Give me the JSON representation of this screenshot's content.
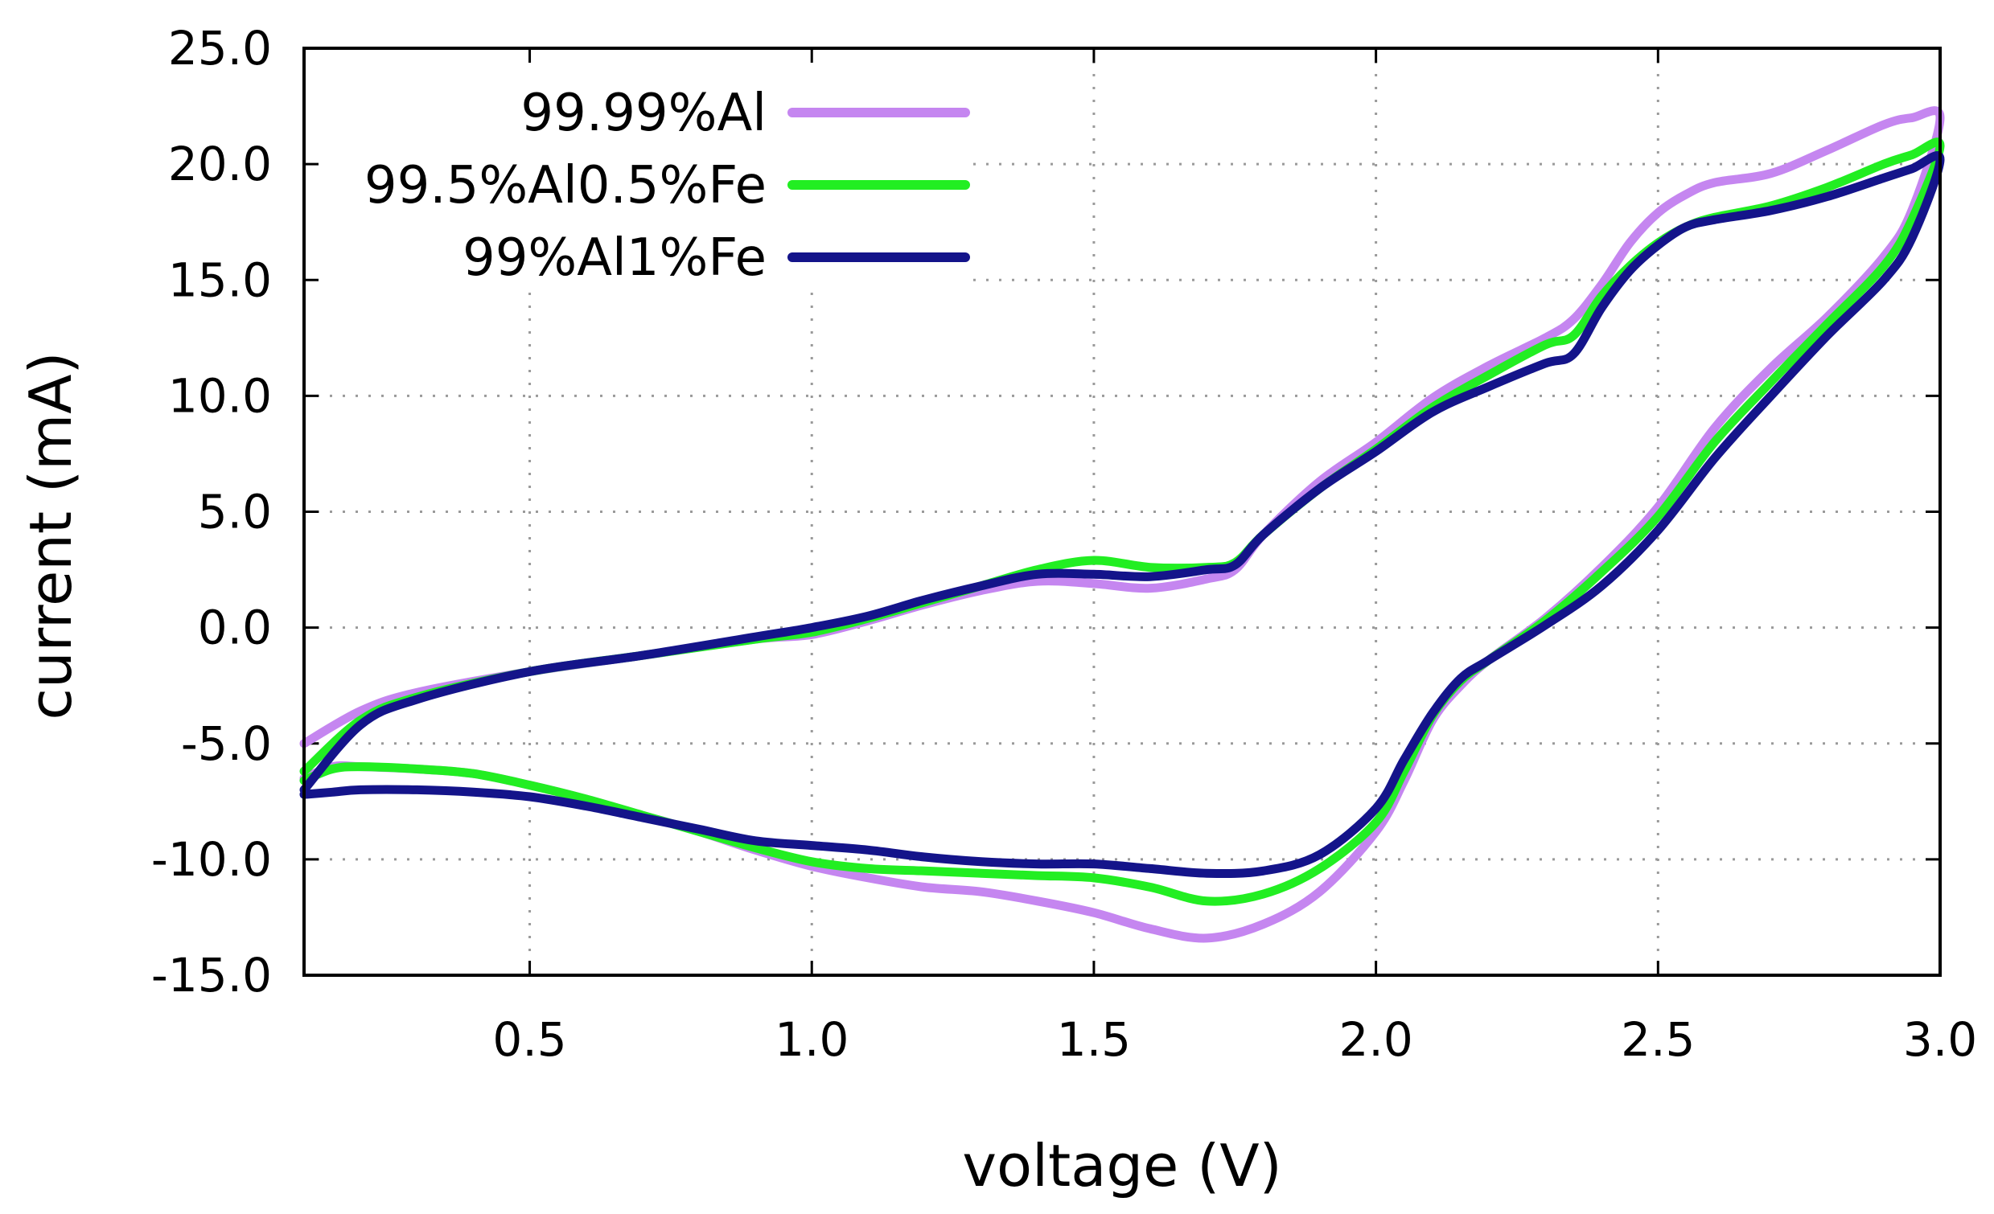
{
  "chart_data": {
    "type": "line",
    "title": "",
    "xlabel": "voltage (V)",
    "ylabel": "current (mA)",
    "xlim": [
      0.1,
      3.0
    ],
    "ylim": [
      -15.0,
      25.0
    ],
    "xticks": [
      0.5,
      1.0,
      1.5,
      2.0,
      2.5,
      3.0
    ],
    "xtick_labels": [
      "0.5",
      "1.0",
      "1.5",
      "2.0",
      "2.5",
      "3.0"
    ],
    "yticks": [
      -15.0,
      -10.0,
      -5.0,
      0.0,
      5.0,
      10.0,
      15.0,
      20.0,
      25.0
    ],
    "ytick_labels": [
      "-15.0",
      "-10.0",
      "-5.0",
      "0.0",
      "5.0",
      "10.0",
      "15.0",
      "20.0",
      "25.0"
    ],
    "grid": true,
    "legend_position": "top-left",
    "series": [
      {
        "name": "99.99%Al",
        "color": "#c586f0",
        "points": [
          [
            0.1,
            -5.0
          ],
          [
            0.2,
            -3.6
          ],
          [
            0.3,
            -2.8
          ],
          [
            0.5,
            -1.9
          ],
          [
            0.7,
            -1.2
          ],
          [
            0.9,
            -0.5
          ],
          [
            1.0,
            -0.3
          ],
          [
            1.1,
            0.3
          ],
          [
            1.2,
            1.0
          ],
          [
            1.3,
            1.6
          ],
          [
            1.4,
            2.0
          ],
          [
            1.5,
            1.9
          ],
          [
            1.6,
            1.7
          ],
          [
            1.7,
            2.1
          ],
          [
            1.75,
            2.5
          ],
          [
            1.8,
            4.0
          ],
          [
            1.9,
            6.3
          ],
          [
            2.0,
            8.0
          ],
          [
            2.1,
            9.9
          ],
          [
            2.2,
            11.3
          ],
          [
            2.3,
            12.5
          ],
          [
            2.35,
            13.3
          ],
          [
            2.4,
            14.8
          ],
          [
            2.45,
            16.6
          ],
          [
            2.5,
            17.9
          ],
          [
            2.55,
            18.7
          ],
          [
            2.6,
            19.2
          ],
          [
            2.7,
            19.6
          ],
          [
            2.8,
            20.6
          ],
          [
            2.9,
            21.7
          ],
          [
            2.95,
            22.0
          ],
          [
            3.0,
            22.0
          ],
          [
            2.95,
            18.0
          ],
          [
            2.9,
            16.0
          ],
          [
            2.8,
            13.4
          ],
          [
            2.7,
            11.2
          ],
          [
            2.6,
            8.6
          ],
          [
            2.5,
            5.2
          ],
          [
            2.4,
            2.6
          ],
          [
            2.3,
            0.4
          ],
          [
            2.2,
            -1.4
          ],
          [
            2.15,
            -2.5
          ],
          [
            2.1,
            -4.0
          ],
          [
            2.05,
            -6.6
          ],
          [
            2.0,
            -8.8
          ],
          [
            1.9,
            -11.4
          ],
          [
            1.8,
            -12.8
          ],
          [
            1.7,
            -13.4
          ],
          [
            1.6,
            -13.0
          ],
          [
            1.5,
            -12.3
          ],
          [
            1.4,
            -11.8
          ],
          [
            1.3,
            -11.4
          ],
          [
            1.2,
            -11.2
          ],
          [
            1.1,
            -10.8
          ],
          [
            1.0,
            -10.3
          ],
          [
            0.9,
            -9.6
          ],
          [
            0.8,
            -8.8
          ],
          [
            0.7,
            -8.1
          ],
          [
            0.6,
            -7.4
          ],
          [
            0.5,
            -6.8
          ],
          [
            0.4,
            -6.3
          ],
          [
            0.3,
            -6.1
          ],
          [
            0.2,
            -6.0
          ],
          [
            0.15,
            -6.0
          ],
          [
            0.1,
            -6.5
          ]
        ]
      },
      {
        "name": "99.5%Al0.5%Fe",
        "color": "#22ee22",
        "points": [
          [
            0.1,
            -6.2
          ],
          [
            0.2,
            -4.0
          ],
          [
            0.3,
            -3.0
          ],
          [
            0.5,
            -1.9
          ],
          [
            0.7,
            -1.2
          ],
          [
            0.9,
            -0.5
          ],
          [
            1.0,
            -0.2
          ],
          [
            1.1,
            0.4
          ],
          [
            1.2,
            1.1
          ],
          [
            1.3,
            1.8
          ],
          [
            1.4,
            2.5
          ],
          [
            1.5,
            2.9
          ],
          [
            1.6,
            2.6
          ],
          [
            1.7,
            2.6
          ],
          [
            1.75,
            2.8
          ],
          [
            1.8,
            4.0
          ],
          [
            1.9,
            6.0
          ],
          [
            2.0,
            7.7
          ],
          [
            2.1,
            9.5
          ],
          [
            2.2,
            10.9
          ],
          [
            2.3,
            12.2
          ],
          [
            2.35,
            12.6
          ],
          [
            2.4,
            14.3
          ],
          [
            2.45,
            15.6
          ],
          [
            2.5,
            16.6
          ],
          [
            2.55,
            17.3
          ],
          [
            2.6,
            17.7
          ],
          [
            2.7,
            18.2
          ],
          [
            2.8,
            19.0
          ],
          [
            2.9,
            20.0
          ],
          [
            2.95,
            20.4
          ],
          [
            3.0,
            20.8
          ],
          [
            2.95,
            17.6
          ],
          [
            2.9,
            15.6
          ],
          [
            2.8,
            13.1
          ],
          [
            2.7,
            10.6
          ],
          [
            2.6,
            8.0
          ],
          [
            2.5,
            4.8
          ],
          [
            2.4,
            2.4
          ],
          [
            2.3,
            0.3
          ],
          [
            2.2,
            -1.4
          ],
          [
            2.15,
            -2.3
          ],
          [
            2.1,
            -3.8
          ],
          [
            2.05,
            -6.2
          ],
          [
            2.0,
            -8.4
          ],
          [
            1.9,
            -10.4
          ],
          [
            1.8,
            -11.5
          ],
          [
            1.7,
            -11.8
          ],
          [
            1.6,
            -11.2
          ],
          [
            1.5,
            -10.8
          ],
          [
            1.4,
            -10.7
          ],
          [
            1.3,
            -10.6
          ],
          [
            1.2,
            -10.5
          ],
          [
            1.1,
            -10.4
          ],
          [
            1.0,
            -10.1
          ],
          [
            0.9,
            -9.5
          ],
          [
            0.8,
            -8.8
          ],
          [
            0.7,
            -8.1
          ],
          [
            0.6,
            -7.4
          ],
          [
            0.5,
            -6.8
          ],
          [
            0.4,
            -6.3
          ],
          [
            0.3,
            -6.1
          ],
          [
            0.2,
            -6.0
          ],
          [
            0.15,
            -6.1
          ],
          [
            0.1,
            -6.6
          ]
        ]
      },
      {
        "name": "99%Al1%Fe",
        "color": "#14148a",
        "points": [
          [
            0.1,
            -7.0
          ],
          [
            0.2,
            -4.2
          ],
          [
            0.3,
            -3.1
          ],
          [
            0.5,
            -1.9
          ],
          [
            0.7,
            -1.2
          ],
          [
            0.9,
            -0.4
          ],
          [
            1.0,
            0.0
          ],
          [
            1.1,
            0.5
          ],
          [
            1.2,
            1.2
          ],
          [
            1.3,
            1.8
          ],
          [
            1.4,
            2.3
          ],
          [
            1.5,
            2.3
          ],
          [
            1.6,
            2.2
          ],
          [
            1.7,
            2.5
          ],
          [
            1.75,
            2.7
          ],
          [
            1.8,
            4.0
          ],
          [
            1.9,
            6.0
          ],
          [
            2.0,
            7.6
          ],
          [
            2.1,
            9.3
          ],
          [
            2.2,
            10.4
          ],
          [
            2.3,
            11.4
          ],
          [
            2.35,
            11.8
          ],
          [
            2.4,
            13.8
          ],
          [
            2.45,
            15.4
          ],
          [
            2.5,
            16.5
          ],
          [
            2.55,
            17.3
          ],
          [
            2.6,
            17.6
          ],
          [
            2.7,
            18.0
          ],
          [
            2.8,
            18.6
          ],
          [
            2.9,
            19.4
          ],
          [
            2.95,
            19.8
          ],
          [
            3.0,
            20.2
          ],
          [
            2.95,
            16.8
          ],
          [
            2.9,
            15.0
          ],
          [
            2.8,
            12.6
          ],
          [
            2.7,
            10.0
          ],
          [
            2.6,
            7.3
          ],
          [
            2.5,
            4.2
          ],
          [
            2.4,
            1.8
          ],
          [
            2.3,
            0.1
          ],
          [
            2.2,
            -1.4
          ],
          [
            2.15,
            -2.2
          ],
          [
            2.1,
            -3.7
          ],
          [
            2.05,
            -5.7
          ],
          [
            2.0,
            -7.8
          ],
          [
            1.9,
            -9.8
          ],
          [
            1.8,
            -10.5
          ],
          [
            1.7,
            -10.6
          ],
          [
            1.6,
            -10.4
          ],
          [
            1.5,
            -10.2
          ],
          [
            1.4,
            -10.2
          ],
          [
            1.3,
            -10.1
          ],
          [
            1.2,
            -9.9
          ],
          [
            1.1,
            -9.6
          ],
          [
            1.0,
            -9.4
          ],
          [
            0.9,
            -9.2
          ],
          [
            0.8,
            -8.7
          ],
          [
            0.7,
            -8.2
          ],
          [
            0.6,
            -7.7
          ],
          [
            0.5,
            -7.3
          ],
          [
            0.4,
            -7.1
          ],
          [
            0.3,
            -7.0
          ],
          [
            0.2,
            -7.0
          ],
          [
            0.15,
            -7.1
          ],
          [
            0.1,
            -7.2
          ]
        ]
      }
    ]
  }
}
